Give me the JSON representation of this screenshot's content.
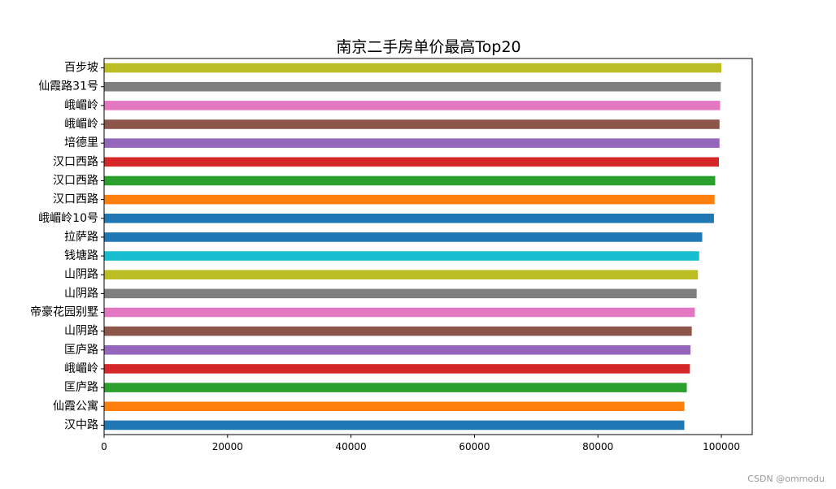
{
  "chart_data": {
    "type": "bar",
    "orientation": "horizontal",
    "title": "南京二手房单价最高Top20",
    "categories": [
      "汉中路",
      "仙霞公寓",
      "匡庐路",
      "峨嵋岭",
      "匡庐路",
      "山阴路",
      "帝豪花园别墅",
      "山阴路",
      "山阴路",
      "钱塘路",
      "拉萨路",
      "峨嵋岭10号",
      "汉口西路",
      "汉口西路",
      "汉口西路",
      "培德里",
      "峨嵋岭",
      "峨嵋岭",
      "仙霞路31号",
      "百步坡"
    ],
    "values": [
      94000,
      94000,
      94400,
      94900,
      95000,
      95200,
      95700,
      96000,
      96200,
      96400,
      96900,
      98800,
      98900,
      99000,
      99600,
      99700,
      99700,
      99800,
      99900,
      100000
    ],
    "colors": [
      "#1f77b4",
      "#ff7f0e",
      "#2ca02c",
      "#d62728",
      "#9467bd",
      "#8c564b",
      "#e377c2",
      "#7f7f7f",
      "#bcbd22",
      "#17becf",
      "#1f77b4",
      "#1f77b4",
      "#ff7f0e",
      "#2ca02c",
      "#d62728",
      "#9467bd",
      "#8c564b",
      "#e377c2",
      "#7f7f7f",
      "#bcbd22"
    ],
    "xlim": [
      0,
      105000
    ],
    "xticks": [
      0,
      20000,
      40000,
      60000,
      80000,
      100000
    ],
    "xtick_labels": [
      "0",
      "20000",
      "40000",
      "60000",
      "80000",
      "100000"
    ],
    "xlabel": "",
    "ylabel": "",
    "grid": false,
    "legend": "none"
  },
  "watermark": "CSDN @ommodu"
}
